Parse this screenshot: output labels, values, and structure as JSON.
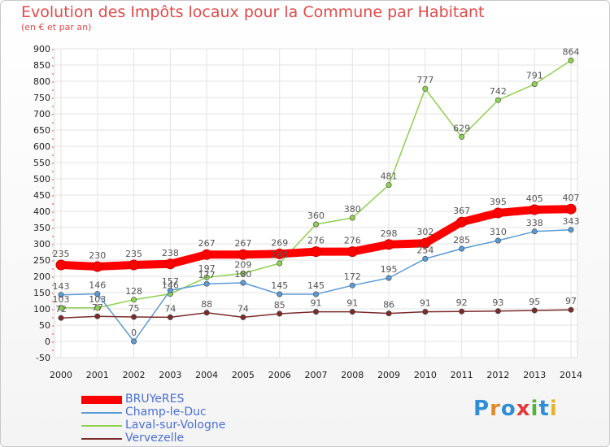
{
  "title": "Evolution des Impôts locaux pour la Commune par Habitant",
  "subtitle": "(en € et par an)",
  "logo": {
    "letters": [
      "P",
      "r",
      "o",
      "x",
      "i",
      "t",
      "i"
    ],
    "colors": [
      "#2f8fd6",
      "#e4892a",
      "#2f8fd6",
      "#e23a3a",
      "#55b33a",
      "#2f8fd6",
      "#e4b32a"
    ]
  },
  "chart_data": {
    "type": "line",
    "x": [
      "2000",
      "2001",
      "2002",
      "2003",
      "2004",
      "2005",
      "2006",
      "2007",
      "2008",
      "2009",
      "2010",
      "2011",
      "2012",
      "2013",
      "2014"
    ],
    "ylim": [
      -50,
      900
    ],
    "yticks": [
      "-50",
      "0",
      "50",
      "100",
      "150",
      "200",
      "250",
      "300",
      "350",
      "400",
      "450",
      "500",
      "550",
      "600",
      "650",
      "700",
      "750",
      "800",
      "850",
      "900"
    ],
    "grid": true,
    "legend": "bottom-left",
    "series": [
      {
        "name": "BRUYeRES",
        "color": "#ff0000",
        "values": [
          235,
          230,
          235,
          238,
          267,
          267,
          269,
          276,
          276,
          298,
          302,
          367,
          395,
          405,
          407
        ]
      },
      {
        "name": "Champ-le-Duc",
        "color": "#5b9bd5",
        "values": [
          143,
          146,
          0,
          157,
          177,
          180,
          145,
          145,
          172,
          195,
          254,
          285,
          310,
          338,
          343
        ]
      },
      {
        "name": "Laval-sur-Vologne",
        "color": "#8fd14f",
        "values": [
          103,
          103,
          128,
          146,
          197,
          209,
          240,
          360,
          380,
          481,
          777,
          629,
          742,
          791,
          864
        ]
      },
      {
        "name": "Vervezelle",
        "color": "#7b2b2b",
        "values": [
          72,
          77,
          75,
          74,
          88,
          74,
          85,
          91,
          91,
          86,
          91,
          92,
          93,
          95,
          97
        ]
      }
    ],
    "labels": [
      [
        "235",
        "230",
        "235",
        "238",
        "267",
        "267",
        "269",
        "276",
        "276",
        "298",
        "302",
        "367",
        "395",
        "405",
        "407"
      ],
      [
        "143",
        "146",
        "0",
        "157",
        "177",
        "180",
        "145",
        "145",
        "172",
        "195",
        "254",
        "285",
        "310",
        "338",
        "343"
      ],
      [
        "103",
        "103",
        "128",
        "146",
        "197",
        "209",
        "240",
        "360",
        "380",
        "481",
        "777",
        "629",
        "742",
        "791",
        "864"
      ],
      [
        "72",
        "77",
        "75",
        "74",
        "88",
        "74",
        "85",
        "91",
        "91",
        "86",
        "91",
        "92",
        "93",
        "95",
        "97"
      ]
    ]
  }
}
